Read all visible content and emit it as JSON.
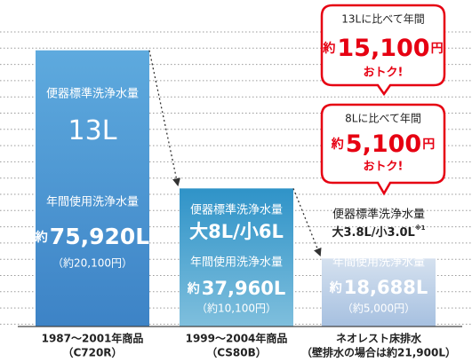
{
  "chart_data": {
    "type": "bar",
    "categories": [
      "1987〜2001年商品",
      "1999〜2004年商品",
      "ネオレスト床排水"
    ],
    "category_notes": [
      "（C720R）",
      "（CS80B）",
      "（壁排水の場合は約21,900L）"
    ],
    "values": [
      75920,
      37960,
      18688
    ],
    "value_labels": [
      "75,920L",
      "37,960L",
      "18,688L"
    ],
    "approx_prefix": "約",
    "annual_label": "年間使用洗浄水量",
    "standard_label": "便器標準洗浄水量",
    "standard_volumes": [
      "13L",
      "大8L/小6L",
      "大3.8L/小3.0L"
    ],
    "standard_note_mark": "※1",
    "yen_labels": [
      "（約20,100円）",
      "（約10,100円）",
      "（約5,000円）"
    ],
    "callouts": [
      {
        "text": "13Lに比べて年間",
        "prefix": "約",
        "amount": "15,100",
        "unit": "円",
        "note": "おトク!"
      },
      {
        "text": "8Lに比べて年間",
        "prefix": "約",
        "amount": "5,100",
        "unit": "円",
        "note": "おトク!"
      }
    ]
  }
}
